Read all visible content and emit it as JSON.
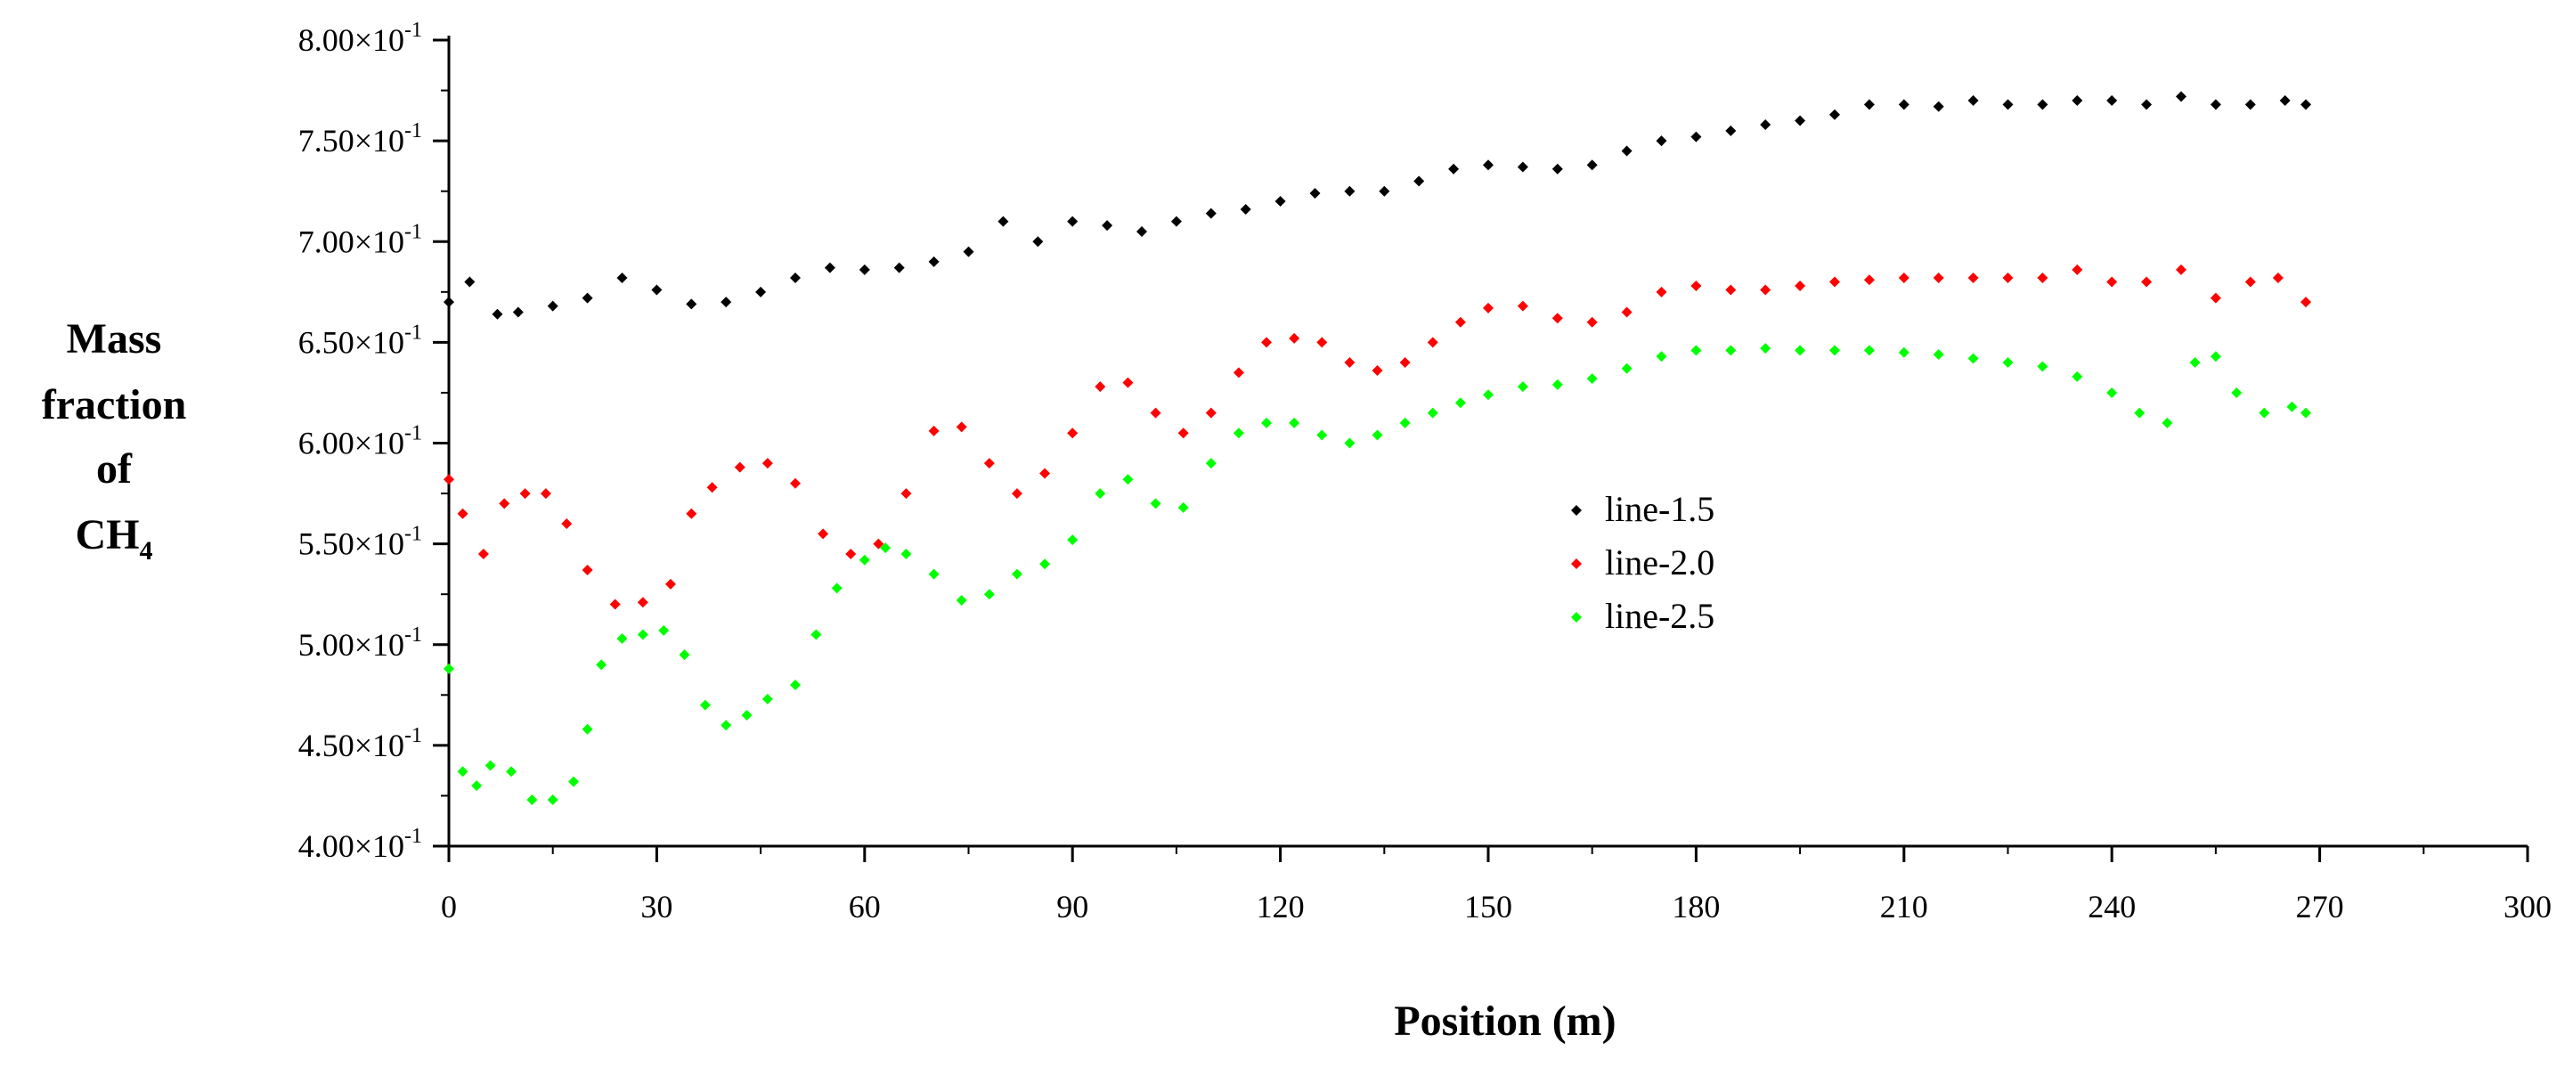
{
  "chart_data": {
    "type": "scatter",
    "xlabel": "Position (m)",
    "ylabel": [
      "Mass",
      "fraction",
      "of",
      "CH",
      "4"
    ],
    "xlim": [
      0,
      300
    ],
    "ylim": [
      0.4,
      0.8
    ],
    "xticks": [
      0,
      30,
      60,
      90,
      120,
      150,
      180,
      210,
      240,
      270,
      300
    ],
    "yticks": [
      {
        "value": 0.4,
        "mantissa": "4.00×10",
        "exp": "-1"
      },
      {
        "value": 0.45,
        "mantissa": "4.50×10",
        "exp": "-1"
      },
      {
        "value": 0.5,
        "mantissa": "5.00×10",
        "exp": "-1"
      },
      {
        "value": 0.55,
        "mantissa": "5.50×10",
        "exp": "-1"
      },
      {
        "value": 0.6,
        "mantissa": "6.00×10",
        "exp": "-1"
      },
      {
        "value": 0.65,
        "mantissa": "6.50×10",
        "exp": "-1"
      },
      {
        "value": 0.7,
        "mantissa": "7.00×10",
        "exp": "-1"
      },
      {
        "value": 0.75,
        "mantissa": "7.50×10",
        "exp": "-1"
      },
      {
        "value": 0.8,
        "mantissa": "8.00×10",
        "exp": "-1"
      }
    ],
    "grid": false,
    "legend_position": "center-right",
    "series": [
      {
        "name": "line-1.5",
        "color": "#000000",
        "x": [
          0,
          3,
          7,
          10,
          15,
          20,
          25,
          30,
          35,
          40,
          45,
          50,
          55,
          60,
          65,
          70,
          75,
          80,
          85,
          90,
          95,
          100,
          105,
          110,
          115,
          120,
          125,
          130,
          135,
          140,
          145,
          150,
          155,
          160,
          165,
          170,
          175,
          180,
          185,
          190,
          195,
          200,
          205,
          210,
          215,
          220,
          225,
          230,
          235,
          240,
          245,
          250,
          255,
          260,
          265,
          268
        ],
        "y": [
          0.67,
          0.68,
          0.664,
          0.665,
          0.668,
          0.672,
          0.682,
          0.676,
          0.669,
          0.67,
          0.675,
          0.682,
          0.687,
          0.686,
          0.687,
          0.69,
          0.695,
          0.71,
          0.7,
          0.71,
          0.708,
          0.705,
          0.71,
          0.714,
          0.716,
          0.72,
          0.724,
          0.725,
          0.725,
          0.73,
          0.736,
          0.738,
          0.737,
          0.736,
          0.738,
          0.745,
          0.75,
          0.752,
          0.755,
          0.758,
          0.76,
          0.763,
          0.768,
          0.768,
          0.767,
          0.77,
          0.768,
          0.768,
          0.77,
          0.77,
          0.768,
          0.772,
          0.768,
          0.768,
          0.77,
          0.768
        ]
      },
      {
        "name": "line-2.0",
        "color": "#ff0000",
        "x": [
          0,
          2,
          5,
          8,
          11,
          14,
          17,
          20,
          24,
          28,
          32,
          35,
          38,
          42,
          46,
          50,
          54,
          58,
          62,
          66,
          70,
          74,
          78,
          82,
          86,
          90,
          94,
          98,
          102,
          106,
          110,
          114,
          118,
          122,
          126,
          130,
          134,
          138,
          142,
          146,
          150,
          155,
          160,
          165,
          170,
          175,
          180,
          185,
          190,
          195,
          200,
          205,
          210,
          215,
          220,
          225,
          230,
          235,
          240,
          245,
          250,
          255,
          260,
          264,
          268
        ],
        "y": [
          0.582,
          0.565,
          0.545,
          0.57,
          0.575,
          0.575,
          0.56,
          0.537,
          0.52,
          0.521,
          0.53,
          0.565,
          0.578,
          0.588,
          0.59,
          0.58,
          0.555,
          0.545,
          0.55,
          0.575,
          0.606,
          0.608,
          0.59,
          0.575,
          0.585,
          0.605,
          0.628,
          0.63,
          0.615,
          0.605,
          0.615,
          0.635,
          0.65,
          0.652,
          0.65,
          0.64,
          0.636,
          0.64,
          0.65,
          0.66,
          0.667,
          0.668,
          0.662,
          0.66,
          0.665,
          0.675,
          0.678,
          0.676,
          0.676,
          0.678,
          0.68,
          0.681,
          0.682,
          0.682,
          0.682,
          0.682,
          0.682,
          0.686,
          0.68,
          0.68,
          0.686,
          0.672,
          0.68,
          0.682,
          0.67
        ]
      },
      {
        "name": "line-2.5",
        "color": "#00ff00",
        "x": [
          0,
          2,
          4,
          6,
          9,
          12,
          15,
          18,
          20,
          22,
          25,
          28,
          31,
          34,
          37,
          40,
          43,
          46,
          50,
          53,
          56,
          60,
          63,
          66,
          70,
          74,
          78,
          82,
          86,
          90,
          94,
          98,
          102,
          106,
          110,
          114,
          118,
          122,
          126,
          130,
          134,
          138,
          142,
          146,
          150,
          155,
          160,
          165,
          170,
          175,
          180,
          185,
          190,
          195,
          200,
          205,
          210,
          215,
          220,
          225,
          230,
          235,
          240,
          244,
          248,
          252,
          255,
          258,
          262,
          266,
          268
        ],
        "y": [
          0.488,
          0.437,
          0.43,
          0.44,
          0.437,
          0.423,
          0.423,
          0.432,
          0.458,
          0.49,
          0.503,
          0.505,
          0.507,
          0.495,
          0.47,
          0.46,
          0.465,
          0.473,
          0.48,
          0.505,
          0.528,
          0.542,
          0.548,
          0.545,
          0.535,
          0.522,
          0.525,
          0.535,
          0.54,
          0.552,
          0.575,
          0.582,
          0.57,
          0.568,
          0.59,
          0.605,
          0.61,
          0.61,
          0.604,
          0.6,
          0.604,
          0.61,
          0.615,
          0.62,
          0.624,
          0.628,
          0.629,
          0.632,
          0.637,
          0.643,
          0.646,
          0.646,
          0.647,
          0.646,
          0.646,
          0.646,
          0.645,
          0.644,
          0.642,
          0.64,
          0.638,
          0.633,
          0.625,
          0.615,
          0.61,
          0.64,
          0.643,
          0.625,
          0.615,
          0.618,
          0.615
        ]
      }
    ]
  }
}
